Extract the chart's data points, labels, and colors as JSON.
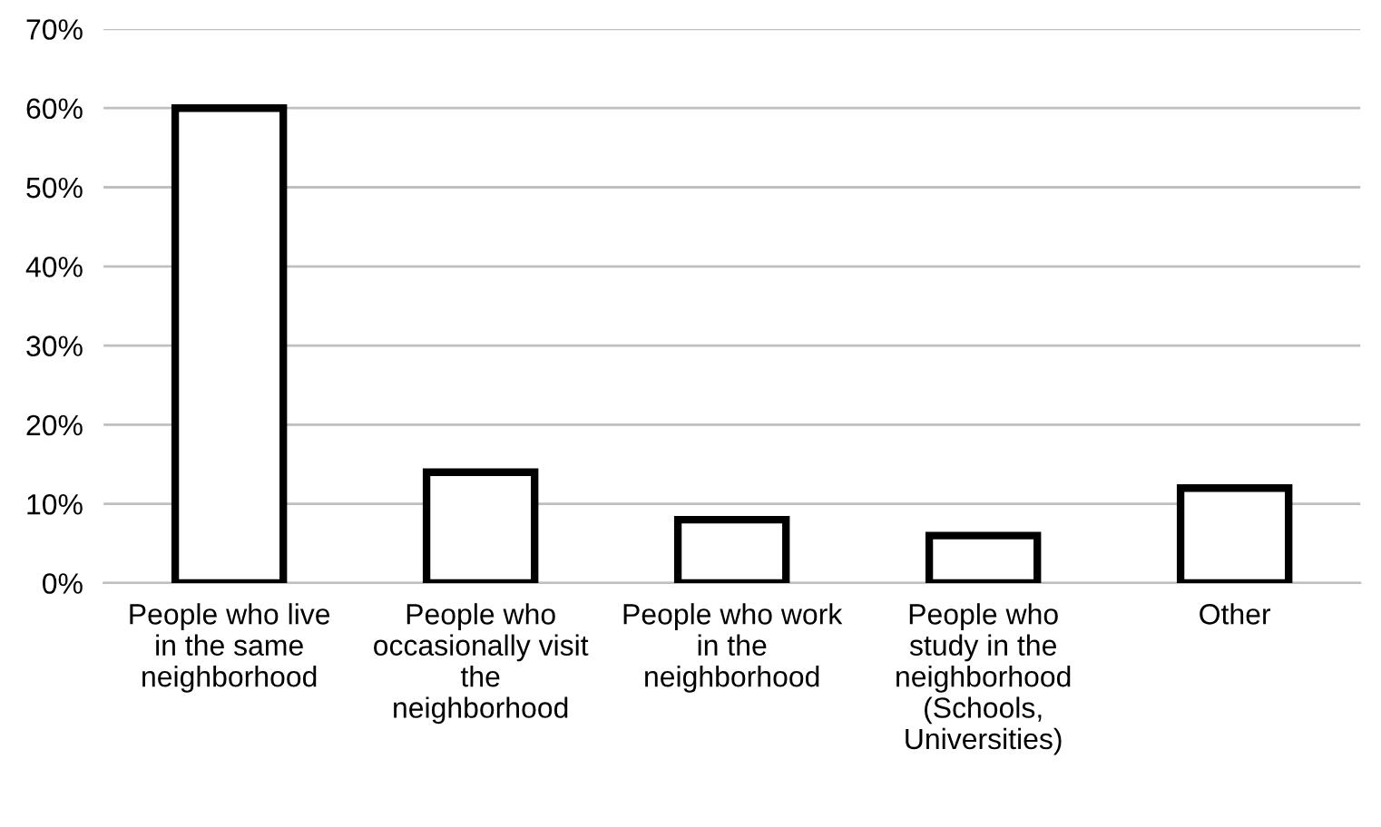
{
  "chart_data": {
    "type": "bar",
    "categories": [
      "People who live\nin the same\nneighborhood",
      "People who\noccasionally visit\nthe\nneighborhood",
      "People who work\nin the\nneighborhood",
      "People who\nstudy in the\nneighborhood\n(Schools,\nUniversities)",
      "Other"
    ],
    "values": [
      60,
      14,
      8,
      6,
      12
    ],
    "color": "#ffffff",
    "ylim": [
      0,
      70
    ],
    "yticks": [
      {
        "value": 0,
        "label": "0%"
      },
      {
        "value": 10,
        "label": "10%"
      },
      {
        "value": 20,
        "label": "20%"
      },
      {
        "value": 30,
        "label": "30%"
      },
      {
        "value": 40,
        "label": "40%"
      },
      {
        "value": 50,
        "label": "50%"
      },
      {
        "value": 60,
        "label": "60%"
      },
      {
        "value": 70,
        "label": "70%"
      }
    ],
    "grid": "y",
    "legend": false
  }
}
